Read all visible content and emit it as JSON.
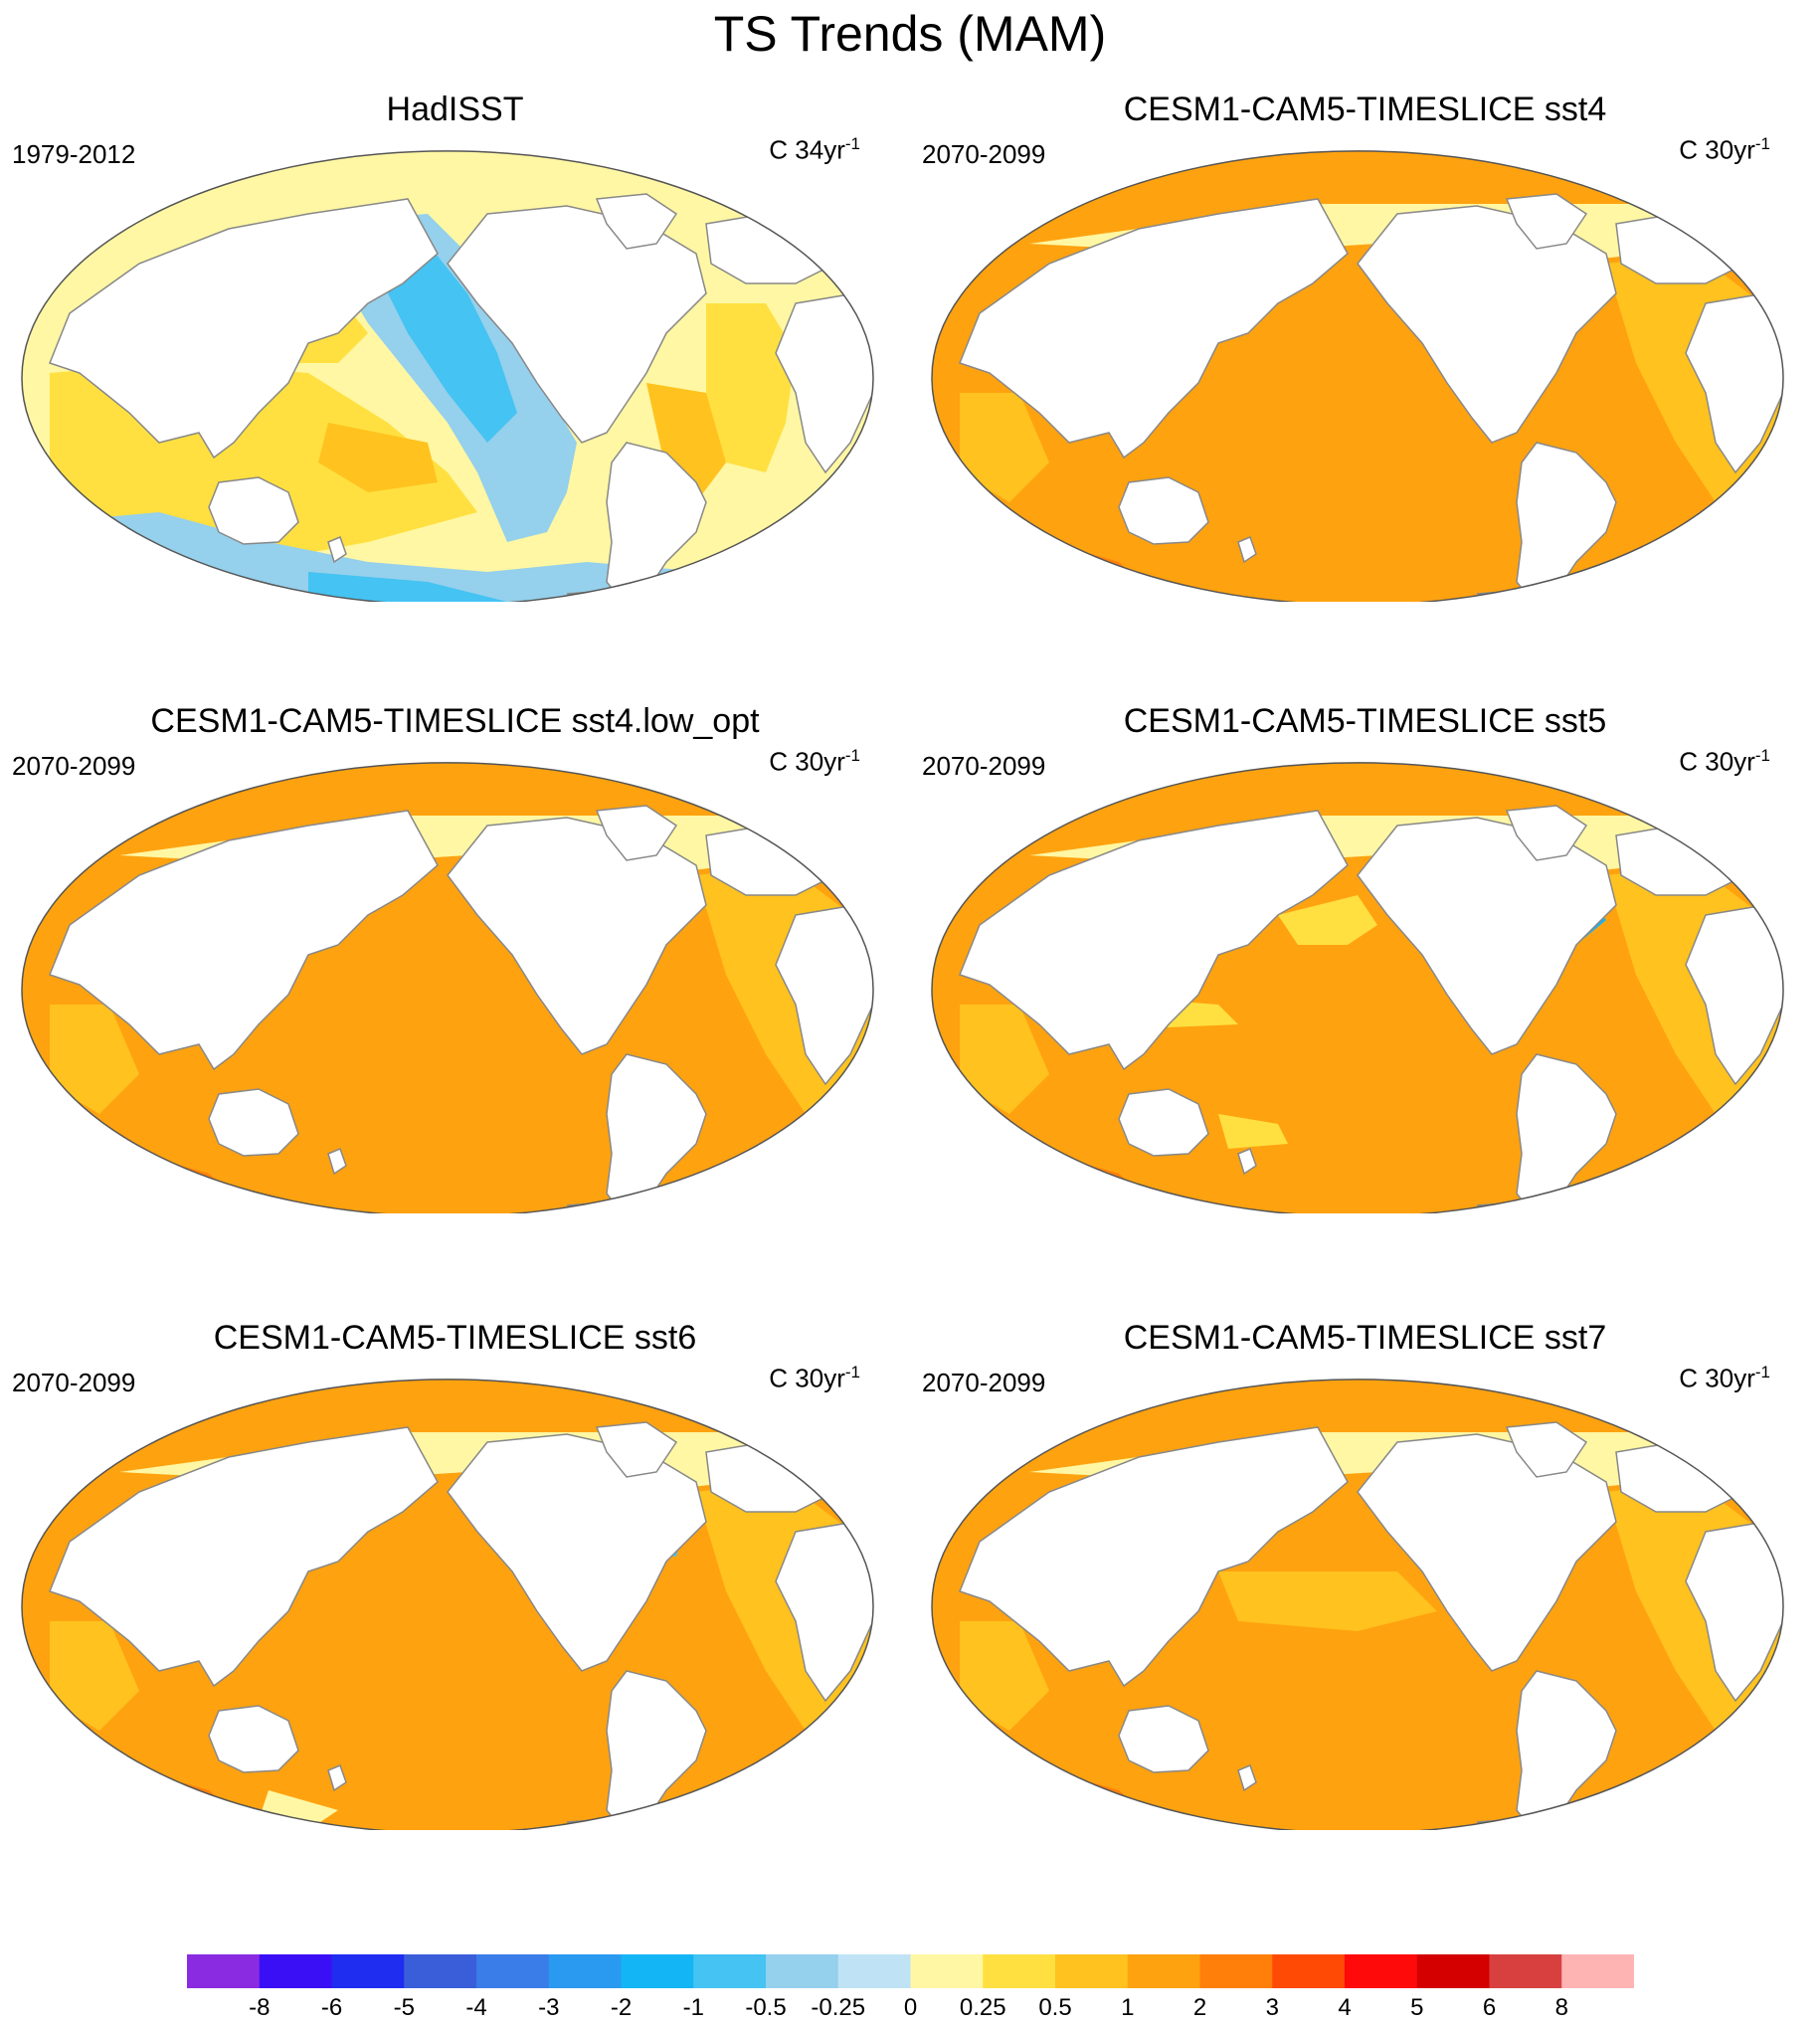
{
  "title": "TS Trends (MAM)",
  "panels": [
    {
      "title": "HadISST",
      "period": "1979-2012",
      "units_prefix": "C 34yr",
      "units_sup": "-1",
      "scheme": "obs"
    },
    {
      "title": "CESM1-CAM5-TIMESLICE sst4",
      "period": "2070-2099",
      "units_prefix": "C 30yr",
      "units_sup": "-1",
      "scheme": "model_a"
    },
    {
      "title": "CESM1-CAM5-TIMESLICE sst4.low_opt",
      "period": "2070-2099",
      "units_prefix": "C 30yr",
      "units_sup": "-1",
      "scheme": "model_a"
    },
    {
      "title": "CESM1-CAM5-TIMESLICE sst5",
      "period": "2070-2099",
      "units_prefix": "C 30yr",
      "units_sup": "-1",
      "scheme": "model_b"
    },
    {
      "title": "CESM1-CAM5-TIMESLICE sst6",
      "period": "2070-2099",
      "units_prefix": "C 30yr",
      "units_sup": "-1",
      "scheme": "model_c"
    },
    {
      "title": "CESM1-CAM5-TIMESLICE sst7",
      "period": "2070-2099",
      "units_prefix": "C 30yr",
      "units_sup": "-1",
      "scheme": "model_d"
    }
  ],
  "colorbar": {
    "labels": [
      "-8",
      "-6",
      "-5",
      "-4",
      "-3",
      "-2",
      "-1",
      "-0.5",
      "-0.25",
      "0",
      "0.25",
      "0.5",
      "1",
      "2",
      "3",
      "4",
      "5",
      "6",
      "8"
    ],
    "colors": [
      "#8a2be2",
      "#3b0ff5",
      "#1f2df0",
      "#3a5ed9",
      "#3a7ce8",
      "#2a9af0",
      "#13b5f5",
      "#45c3f2",
      "#95d0ec",
      "#bfe3f5",
      "#fff7a3",
      "#ffe040",
      "#ffc21e",
      "#ffa20f",
      "#ff7f0a",
      "#ff4a05",
      "#ff0a0a",
      "#d40000",
      "#d84040",
      "#ffb4b4"
    ]
  },
  "colors": {
    "land": "#ffffff",
    "coast": "#888888",
    "arctic": "#fff7a3"
  }
}
